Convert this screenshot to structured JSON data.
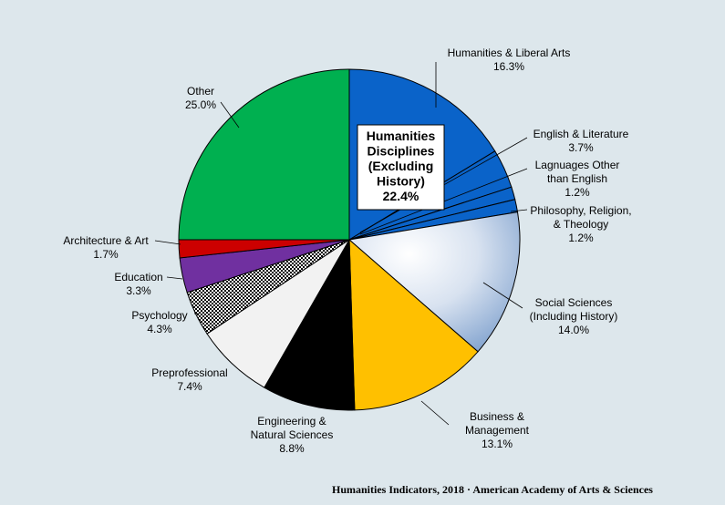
{
  "chart_data": {
    "type": "pie",
    "slices": [
      {
        "label_lines": [
          "Humanities & Liberal Arts",
          "16.3%"
        ],
        "value": 16.3,
        "color": "#0a63c9",
        "group": "humanities"
      },
      {
        "label_lines": [
          "English & Literature",
          "3.7%"
        ],
        "value": 3.7,
        "color": "#0a63c9",
        "group": "humanities"
      },
      {
        "label_lines": [
          "Lagnuages  Other",
          "than English",
          "1.2%"
        ],
        "value": 1.2,
        "color": "#0a63c9",
        "group": "humanities"
      },
      {
        "label_lines": [
          "Philosophy, Religion,",
          "& Theology",
          "1.2%"
        ],
        "value": 1.2,
        "color": "#0a63c9",
        "group": "humanities"
      },
      {
        "label_lines": [
          "Social Sciences",
          "(Including History)",
          "14.0%"
        ],
        "value": 14.0,
        "color": "gradient-blue",
        "group": "other"
      },
      {
        "label_lines": [
          "Business &",
          "Management",
          "13.1%"
        ],
        "value": 13.1,
        "color": "#ffc000",
        "group": "other"
      },
      {
        "label_lines": [
          "Engineering  &",
          "Natural Sciences",
          "8.8%"
        ],
        "value": 8.8,
        "color": "#000000",
        "group": "other"
      },
      {
        "label_lines": [
          "Preprofessional",
          "7.4%"
        ],
        "value": 7.4,
        "color": "#f2f2f2",
        "group": "other"
      },
      {
        "label_lines": [
          "Psychology",
          "4.3%"
        ],
        "value": 4.3,
        "color": "checker-pattern",
        "group": "other"
      },
      {
        "label_lines": [
          "Education",
          "3.3%"
        ],
        "value": 3.3,
        "color": "#7030a0",
        "group": "other"
      },
      {
        "label_lines": [
          "Architecture & Art",
          "1.7%"
        ],
        "value": 1.7,
        "color": "#cc0000",
        "group": "other"
      },
      {
        "label_lines": [
          "Other",
          "25.0%"
        ],
        "value": 25.0,
        "color": "#00b050",
        "group": "other"
      }
    ],
    "callout_lines": [
      "Humanities",
      "Disciplines",
      "(Excluding",
      "History)",
      "22.4%"
    ]
  },
  "footer": "Humanities  Indicators, 2018 · American Academy of Arts & Sciences"
}
